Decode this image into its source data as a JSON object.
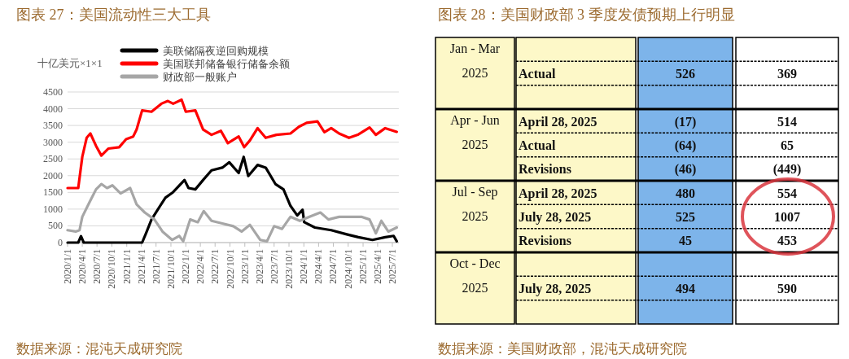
{
  "chart_data": [
    {
      "type": "line",
      "title": "图表 27：美国流动性三大工具",
      "ylabel": "十亿美元×1×1",
      "annotations": [
        "数据来源：混沌天成研究院"
      ],
      "legend": "top",
      "grid": "y",
      "ylim": [
        0,
        4500
      ],
      "yticks": [
        0,
        500,
        1000,
        1500,
        2000,
        2500,
        3000,
        3500,
        4000,
        4500
      ],
      "xlim": [
        "2020-01-01",
        "2025-08-10"
      ],
      "xticks": [
        {
          "value": "2020-01-01",
          "label": "2020/1/1"
        },
        {
          "value": "2020-04-01",
          "label": "2020/4/1"
        },
        {
          "value": "2020-07-01",
          "label": "2020/7/1"
        },
        {
          "value": "2020-10-01",
          "label": "2020/10/1"
        },
        {
          "value": "2021-01-01",
          "label": "2021/1/1"
        },
        {
          "value": "2021-04-01",
          "label": "2021/4/1"
        },
        {
          "value": "2021-07-01",
          "label": "2021/7/1"
        },
        {
          "value": "2021-10-01",
          "label": "2021/10/1"
        },
        {
          "value": "2022-01-01",
          "label": "2022/1/1"
        },
        {
          "value": "2022-04-01",
          "label": "2022/4/1"
        },
        {
          "value": "2022-07-01",
          "label": "2022/7/1"
        },
        {
          "value": "2022-10-01",
          "label": "2022/10/1"
        },
        {
          "value": "2023-01-01",
          "label": "2023/1/1"
        },
        {
          "value": "2023-04-01",
          "label": "2023/4/1"
        },
        {
          "value": "2023-07-01",
          "label": "2023/7/1"
        },
        {
          "value": "2023-10-01",
          "label": "2023/10/1"
        },
        {
          "value": "2024-01-01",
          "label": "2024/1/1"
        },
        {
          "value": "2024-04-01",
          "label": "2024/4/1"
        },
        {
          "value": "2024-07-01",
          "label": "2024/7/1"
        },
        {
          "value": "2024-10-01",
          "label": "2024/10/1"
        },
        {
          "value": "2025-01-01",
          "label": "2025/1/1"
        },
        {
          "value": "2025-04-01",
          "label": "2025/4/1"
        },
        {
          "value": "2025-07-01",
          "label": "2025/7/1"
        }
      ],
      "series": [
        {
          "name": "美联储隔夜逆回购规模",
          "color": "#000000",
          "x": [
            "2020-01-01",
            "2020-03-07",
            "2020-03-24",
            "2020-04-10",
            "2021-04-06",
            "2021-05-01",
            "2021-06-03",
            "2021-07-16",
            "2021-08-28",
            "2021-10-15",
            "2021-12-24",
            "2022-01-18",
            "2022-03-01",
            "2022-04-18",
            "2022-06-09",
            "2022-08-15",
            "2022-09-27",
            "2022-11-24",
            "2022-12-25",
            "2023-01-22",
            "2023-03-21",
            "2023-05-10",
            "2023-07-09",
            "2023-08-28",
            "2023-10-10",
            "2023-11-21",
            "2023-12-24",
            "2024-01-03",
            "2024-03-09",
            "2024-06-18",
            "2024-09-27",
            "2024-12-03",
            "2025-02-28",
            "2025-05-18",
            "2025-07-09",
            "2025-07-28"
          ],
          "values": [
            0,
            0,
            190,
            0,
            0,
            290,
            690,
            1020,
            1340,
            1510,
            1870,
            1630,
            1590,
            1870,
            2160,
            2240,
            2400,
            2080,
            2560,
            1990,
            2320,
            2240,
            1750,
            1590,
            1100,
            810,
            980,
            610,
            450,
            370,
            240,
            160,
            80,
            160,
            200,
            40
          ]
        },
        {
          "name": "美国联邦储备银行储备余额",
          "color": "#ff0000",
          "x": [
            "2020-01-01",
            "2020-03-07",
            "2020-04-01",
            "2020-04-28",
            "2020-05-21",
            "2020-06-25",
            "2020-07-28",
            "2020-09-10",
            "2020-11-15",
            "2020-12-28",
            "2021-02-10",
            "2021-03-03",
            "2021-04-06",
            "2021-06-03",
            "2021-08-03",
            "2021-09-12",
            "2021-10-15",
            "2021-12-06",
            "2022-01-01",
            "2022-03-01",
            "2022-04-18",
            "2022-06-09",
            "2022-08-06",
            "2022-09-18",
            "2022-11-24",
            "2022-12-28",
            "2023-02-01",
            "2023-03-21",
            "2023-05-10",
            "2023-07-15",
            "2023-10-10",
            "2023-12-01",
            "2024-01-18",
            "2024-03-25",
            "2024-05-07",
            "2024-06-18",
            "2024-08-06",
            "2024-10-06",
            "2024-12-03",
            "2025-02-10",
            "2025-03-21",
            "2025-05-18",
            "2025-07-28"
          ],
          "values": [
            1630,
            1630,
            2560,
            3130,
            3260,
            2890,
            2600,
            2810,
            2850,
            3090,
            3170,
            3380,
            3950,
            3910,
            4150,
            4230,
            4150,
            4270,
            3910,
            3950,
            3380,
            3220,
            3340,
            2970,
            3170,
            2850,
            3050,
            3420,
            3130,
            3220,
            3260,
            3460,
            3580,
            3620,
            3300,
            3420,
            3260,
            3130,
            3230,
            3440,
            3220,
            3420,
            3310
          ]
        },
        {
          "name": "财政部一般账户",
          "color": "#a6a6a6",
          "x": [
            "2020-01-01",
            "2020-02-20",
            "2020-03-15",
            "2020-04-01",
            "2020-05-13",
            "2020-06-25",
            "2020-07-28",
            "2020-09-01",
            "2020-10-04",
            "2020-11-24",
            "2021-01-22",
            "2021-03-03",
            "2021-04-22",
            "2021-06-21",
            "2021-08-10",
            "2021-10-09",
            "2021-11-21",
            "2021-12-16",
            "2022-01-28",
            "2022-03-16",
            "2022-04-22",
            "2022-06-09",
            "2022-08-15",
            "2022-10-22",
            "2022-12-12",
            "2023-02-01",
            "2023-04-06",
            "2023-05-18",
            "2023-07-01",
            "2023-08-19",
            "2023-10-10",
            "2023-12-07",
            "2024-02-05",
            "2024-04-12",
            "2024-06-01",
            "2024-08-06",
            "2024-10-15",
            "2024-12-21",
            "2025-02-10",
            "2025-03-21",
            "2025-04-24",
            "2025-06-06",
            "2025-07-28"
          ],
          "values": [
            370,
            330,
            370,
            770,
            1180,
            1590,
            1750,
            1630,
            1710,
            1470,
            1630,
            1140,
            900,
            690,
            330,
            80,
            200,
            40,
            690,
            610,
            940,
            650,
            570,
            490,
            330,
            530,
            80,
            40,
            490,
            410,
            770,
            650,
            770,
            900,
            690,
            770,
            770,
            770,
            690,
            280,
            650,
            330,
            450
          ]
        }
      ]
    },
    {
      "type": "other",
      "title": "图表 28：美国财政部 3 季度发债预期上行明显",
      "annotations": [
        "数据来源：美国财政部，混沌天成研究院"
      ],
      "y_categories": [
        "Jan - Mar 2025",
        "Apr - Jun 2025",
        "Jul - Sep 2025",
        "Oct - Dec 2025"
      ],
      "categories": [
        null,
        "Actual",
        null,
        "April 28, 2025",
        "Actual",
        "Revisions",
        "April 28, 2025",
        "July 28, 2025",
        "Revisions",
        null,
        "July 28, 2025",
        null
      ],
      "series": [
        {
          "color": "#7db4ea",
          "values": [
            null,
            526,
            null,
            -17,
            -64,
            -46,
            480,
            525,
            45,
            null,
            494,
            null
          ],
          "value_labels": [
            null,
            "526",
            null,
            "(17)",
            "(64)",
            "(46)",
            "480",
            "525",
            "45",
            null,
            "494",
            null
          ]
        },
        {
          "color": "#ffffff",
          "values": [
            null,
            369,
            null,
            514,
            65,
            -449,
            554,
            1007,
            453,
            null,
            590,
            null
          ],
          "value_labels": [
            null,
            "369",
            null,
            "514",
            "65",
            "(449)",
            "554",
            "1007",
            "453",
            null,
            "590",
            null
          ]
        }
      ]
    }
  ]
}
